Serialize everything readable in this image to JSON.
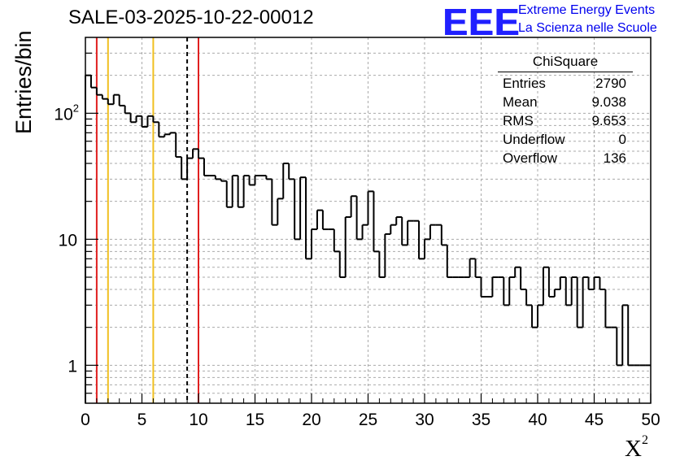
{
  "header": {
    "title": "SALE-03-2025-10-22-00012",
    "logo_text": "EEE",
    "logo_line1": "Extreme Energy Events",
    "logo_line2": "La Scienza nelle Scuole"
  },
  "stats": {
    "title": "ChiSquare",
    "rows": [
      {
        "label": "Entries",
        "value": "2790"
      },
      {
        "label": "Mean",
        "value": "9.038"
      },
      {
        "label": "RMS",
        "value": "9.653"
      },
      {
        "label": "Underflow",
        "value": "0"
      },
      {
        "label": "Overflow",
        "value": "136"
      }
    ]
  },
  "colors": {
    "red_line": "#e02020",
    "yellow_line": "#f0c020",
    "histogram": "#000000",
    "grid": "#aaaaaa"
  },
  "chart_data": {
    "type": "histogram",
    "ylabel": "Entries/bin",
    "xlabel": "X²",
    "xlabel_base": "X",
    "xlabel_sup": "2",
    "xlim": [
      0,
      50
    ],
    "ylim": [
      0.5,
      400
    ],
    "y_scale": "log",
    "grid": true,
    "x_ticks": [
      0,
      5,
      10,
      15,
      20,
      25,
      30,
      35,
      40,
      45,
      50
    ],
    "y_tick_labels": [
      {
        "value": 1,
        "base": "1",
        "exp": ""
      },
      {
        "value": 10,
        "base": "10",
        "exp": ""
      },
      {
        "value": 100,
        "base": "10",
        "exp": "2"
      }
    ],
    "bin_width": 0.5,
    "bins": [
      {
        "x": 0.0,
        "y": 200
      },
      {
        "x": 0.5,
        "y": 160
      },
      {
        "x": 1.0,
        "y": 140
      },
      {
        "x": 1.5,
        "y": 130
      },
      {
        "x": 2.0,
        "y": 118
      },
      {
        "x": 2.5,
        "y": 140
      },
      {
        "x": 3.0,
        "y": 115
      },
      {
        "x": 3.5,
        "y": 100
      },
      {
        "x": 4.0,
        "y": 85
      },
      {
        "x": 4.5,
        "y": 95
      },
      {
        "x": 5.0,
        "y": 78
      },
      {
        "x": 5.5,
        "y": 95
      },
      {
        "x": 6.0,
        "y": 85
      },
      {
        "x": 6.5,
        "y": 65
      },
      {
        "x": 7.0,
        "y": 68
      },
      {
        "x": 7.5,
        "y": 70
      },
      {
        "x": 8.0,
        "y": 45
      },
      {
        "x": 8.5,
        "y": 30
      },
      {
        "x": 9.0,
        "y": 44
      },
      {
        "x": 9.5,
        "y": 52
      },
      {
        "x": 10.0,
        "y": 44
      },
      {
        "x": 10.5,
        "y": 32
      },
      {
        "x": 11.0,
        "y": 32
      },
      {
        "x": 11.5,
        "y": 30
      },
      {
        "x": 12.0,
        "y": 29
      },
      {
        "x": 12.5,
        "y": 18
      },
      {
        "x": 13.0,
        "y": 32
      },
      {
        "x": 13.5,
        "y": 18
      },
      {
        "x": 14.0,
        "y": 32
      },
      {
        "x": 14.5,
        "y": 27
      },
      {
        "x": 15.0,
        "y": 32
      },
      {
        "x": 15.5,
        "y": 32
      },
      {
        "x": 16.0,
        "y": 30
      },
      {
        "x": 16.5,
        "y": 13
      },
      {
        "x": 17.0,
        "y": 21
      },
      {
        "x": 17.5,
        "y": 40
      },
      {
        "x": 18.0,
        "y": 30
      },
      {
        "x": 18.5,
        "y": 10
      },
      {
        "x": 19.0,
        "y": 31
      },
      {
        "x": 19.5,
        "y": 7
      },
      {
        "x": 20.0,
        "y": 12
      },
      {
        "x": 20.5,
        "y": 17
      },
      {
        "x": 21.0,
        "y": 12
      },
      {
        "x": 21.5,
        "y": 12
      },
      {
        "x": 22.0,
        "y": 8
      },
      {
        "x": 22.5,
        "y": 5
      },
      {
        "x": 23.0,
        "y": 15
      },
      {
        "x": 23.5,
        "y": 22
      },
      {
        "x": 24.0,
        "y": 10
      },
      {
        "x": 24.5,
        "y": 13
      },
      {
        "x": 25.0,
        "y": 24
      },
      {
        "x": 25.5,
        "y": 8
      },
      {
        "x": 26.0,
        "y": 5
      },
      {
        "x": 26.5,
        "y": 11
      },
      {
        "x": 27.0,
        "y": 13
      },
      {
        "x": 27.5,
        "y": 15
      },
      {
        "x": 28.0,
        "y": 9
      },
      {
        "x": 28.5,
        "y": 14
      },
      {
        "x": 29.0,
        "y": 14
      },
      {
        "x": 29.5,
        "y": 7
      },
      {
        "x": 30.0,
        "y": 10
      },
      {
        "x": 30.5,
        "y": 13
      },
      {
        "x": 31.0,
        "y": 13
      },
      {
        "x": 31.5,
        "y": 9
      },
      {
        "x": 32.0,
        "y": 5
      },
      {
        "x": 32.5,
        "y": 5
      },
      {
        "x": 33.0,
        "y": 5
      },
      {
        "x": 33.5,
        "y": 5
      },
      {
        "x": 34.0,
        "y": 7
      },
      {
        "x": 34.5,
        "y": 5
      },
      {
        "x": 35.0,
        "y": 3.5
      },
      {
        "x": 35.5,
        "y": 3.5
      },
      {
        "x": 36.0,
        "y": 5
      },
      {
        "x": 36.5,
        "y": 5
      },
      {
        "x": 37.0,
        "y": 3
      },
      {
        "x": 37.5,
        "y": 5
      },
      {
        "x": 38.0,
        "y": 6
      },
      {
        "x": 38.5,
        "y": 4
      },
      {
        "x": 39.0,
        "y": 3
      },
      {
        "x": 39.5,
        "y": 2
      },
      {
        "x": 40.0,
        "y": 3
      },
      {
        "x": 40.5,
        "y": 6
      },
      {
        "x": 41.0,
        "y": 3.5
      },
      {
        "x": 41.5,
        "y": 4
      },
      {
        "x": 42.0,
        "y": 5
      },
      {
        "x": 42.5,
        "y": 3
      },
      {
        "x": 43.0,
        "y": 5
      },
      {
        "x": 43.5,
        "y": 2
      },
      {
        "x": 44.0,
        "y": 5
      },
      {
        "x": 44.5,
        "y": 4
      },
      {
        "x": 45.0,
        "y": 5
      },
      {
        "x": 45.5,
        "y": 4
      },
      {
        "x": 46.0,
        "y": 2
      },
      {
        "x": 46.5,
        "y": 2
      },
      {
        "x": 47.0,
        "y": 1
      },
      {
        "x": 47.5,
        "y": 3
      },
      {
        "x": 48.0,
        "y": 1
      },
      {
        "x": 48.5,
        "y": 1
      },
      {
        "x": 49.0,
        "y": 1
      },
      {
        "x": 49.5,
        "y": 1
      }
    ],
    "vertical_lines": [
      {
        "x": 1.0,
        "color": "red",
        "style": "solid"
      },
      {
        "x": 2.0,
        "color": "yellow",
        "style": "solid"
      },
      {
        "x": 6.0,
        "color": "yellow",
        "style": "solid"
      },
      {
        "x": 9.0,
        "color": "black",
        "style": "dashed"
      },
      {
        "x": 10.0,
        "color": "red",
        "style": "solid"
      }
    ]
  }
}
